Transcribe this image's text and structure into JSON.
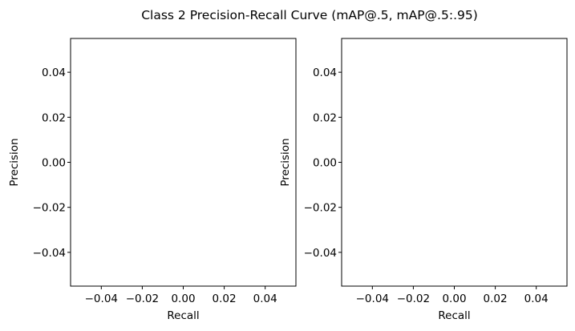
{
  "figure": {
    "title": "Class 2 Precision-Recall Curve (mAP@.5, mAP@.5:.95)",
    "background": "#ffffff",
    "axis_color": "#000000"
  },
  "chart_data": [
    {
      "type": "line",
      "title": "",
      "xlabel": "Recall",
      "ylabel": "Precision",
      "xlim": [
        -0.055,
        0.055
      ],
      "ylim": [
        -0.055,
        0.055
      ],
      "xticks": [
        -0.04,
        -0.02,
        0.0,
        0.02,
        0.04
      ],
      "xtick_labels": [
        "−0.04",
        "−0.02",
        "0.00",
        "0.02",
        "0.04"
      ],
      "yticks": [
        -0.04,
        -0.02,
        0.0,
        0.02,
        0.04
      ],
      "ytick_labels": [
        "−0.04",
        "−0.02",
        "0.00",
        "0.02",
        "0.04"
      ],
      "grid": false,
      "series": []
    },
    {
      "type": "line",
      "title": "",
      "xlabel": "Recall",
      "ylabel": "Precision",
      "xlim": [
        -0.055,
        0.055
      ],
      "ylim": [
        -0.055,
        0.055
      ],
      "xticks": [
        -0.04,
        -0.02,
        0.0,
        0.02,
        0.04
      ],
      "xtick_labels": [
        "−0.04",
        "−0.02",
        "0.00",
        "0.02",
        "0.04"
      ],
      "yticks": [
        -0.04,
        -0.02,
        0.0,
        0.02,
        0.04
      ],
      "ytick_labels": [
        "−0.04",
        "−0.02",
        "0.00",
        "0.02",
        "0.04"
      ],
      "grid": false,
      "series": []
    }
  ]
}
